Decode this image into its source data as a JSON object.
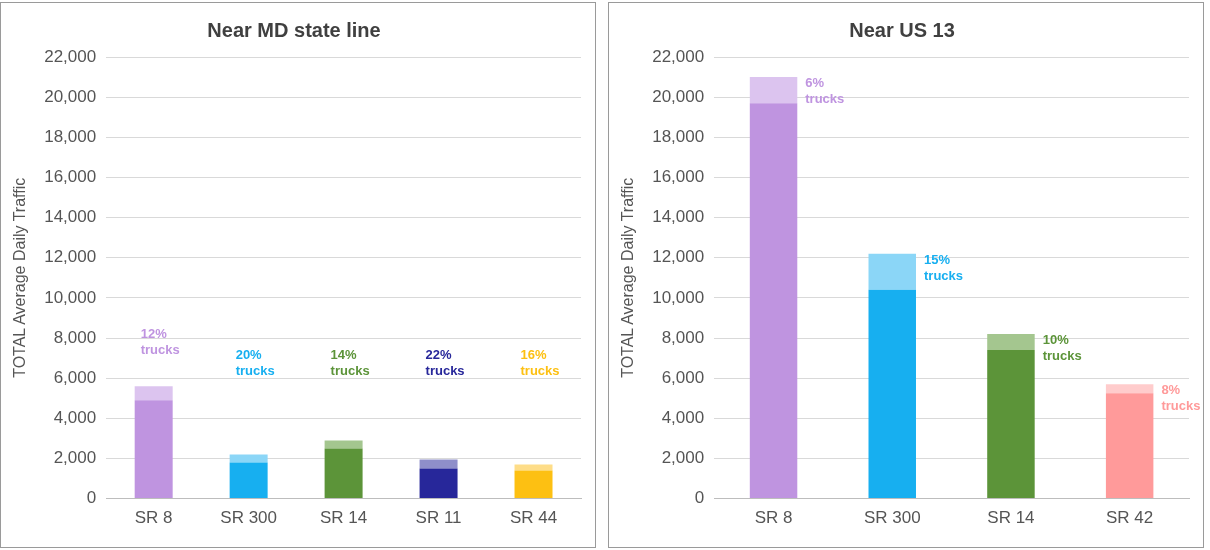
{
  "chart_data": [
    {
      "type": "bar",
      "title": "Near MD state line",
      "ylabel": "TOTAL Average Daily Traffic",
      "categories": [
        "SR 8",
        "SR 300",
        "SR 14",
        "SR 11",
        "SR 44"
      ],
      "stacked": true,
      "series": [
        {
          "colors": [
            "#bf94e0",
            "#17aff0",
            "#5c9439",
            "#27279a",
            "#fdc012"
          ],
          "values": [
            4900,
            1800,
            2500,
            1500,
            1400
          ]
        },
        {
          "colors": [
            "#dcc4ef",
            "#8bd6f7",
            "#a4c68f",
            "#8f8fca",
            "#fedd88"
          ],
          "values": [
            700,
            400,
            400,
            450,
            300
          ]
        }
      ],
      "ylim": [
        0,
        22000
      ],
      "yticks": [
        0,
        {
          "value": 2000,
          "label": "2,000"
        },
        {
          "value": 4000,
          "label": "4,000"
        },
        {
          "value": 6000,
          "label": "6,000"
        },
        {
          "value": 8000,
          "label": "8,000"
        },
        {
          "value": 10000,
          "label": "10,000"
        },
        {
          "value": 12000,
          "label": "12,000"
        },
        {
          "value": 14000,
          "label": "14,000"
        },
        {
          "value": 16000,
          "label": "16,000"
        },
        {
          "value": 18000,
          "label": "18,000"
        },
        {
          "value": 20000,
          "label": "20,000"
        },
        {
          "value": 22000,
          "label": "22,000"
        }
      ],
      "grid": "y",
      "legend": false,
      "annotations": [
        "12% trucks",
        "20% trucks",
        "14% trucks",
        "22% trucks",
        "16% trucks"
      ]
    },
    {
      "type": "bar",
      "title": "Near US 13",
      "ylabel": "TOTAL Average Daily Traffic",
      "categories": [
        "SR 8",
        "SR 300",
        "SR 14",
        "SR 42"
      ],
      "stacked": true,
      "series": [
        {
          "colors": [
            "#bf94e0",
            "#17aff0",
            "#5c9439",
            "#ff9a9a"
          ],
          "values": [
            19700,
            10400,
            7400,
            5250
          ]
        },
        {
          "colors": [
            "#dcc4ef",
            "#8bd6f7",
            "#a4c68f",
            "#ffcccc"
          ],
          "values": [
            1300,
            1800,
            800,
            450
          ]
        }
      ],
      "ylim": [
        0,
        22000
      ],
      "yticks": [
        0,
        {
          "value": 2000,
          "label": "2,000"
        },
        {
          "value": 4000,
          "label": "4,000"
        },
        {
          "value": 6000,
          "label": "6,000"
        },
        {
          "value": 8000,
          "label": "8,000"
        },
        {
          "value": 10000,
          "label": "10,000"
        },
        {
          "value": 12000,
          "label": "12,000"
        },
        {
          "value": 14000,
          "label": "14,000"
        },
        {
          "value": 16000,
          "label": "16,000"
        },
        {
          "value": 18000,
          "label": "18,000"
        },
        {
          "value": 20000,
          "label": "20,000"
        },
        {
          "value": 22000,
          "label": "22,000"
        }
      ],
      "grid": "y",
      "legend": false,
      "annotations": [
        {
          "text": "6% trucks",
          "x": "SR 8",
          "y": 21000
        },
        {
          "text": "15% trucks",
          "x": "SR 300",
          "y": 12200
        },
        {
          "text": "10% trucks",
          "x": "SR 14",
          "y": 8200
        },
        {
          "text": "8% trucks",
          "x": "SR 42",
          "y": 5700
        }
      ]
    }
  ]
}
